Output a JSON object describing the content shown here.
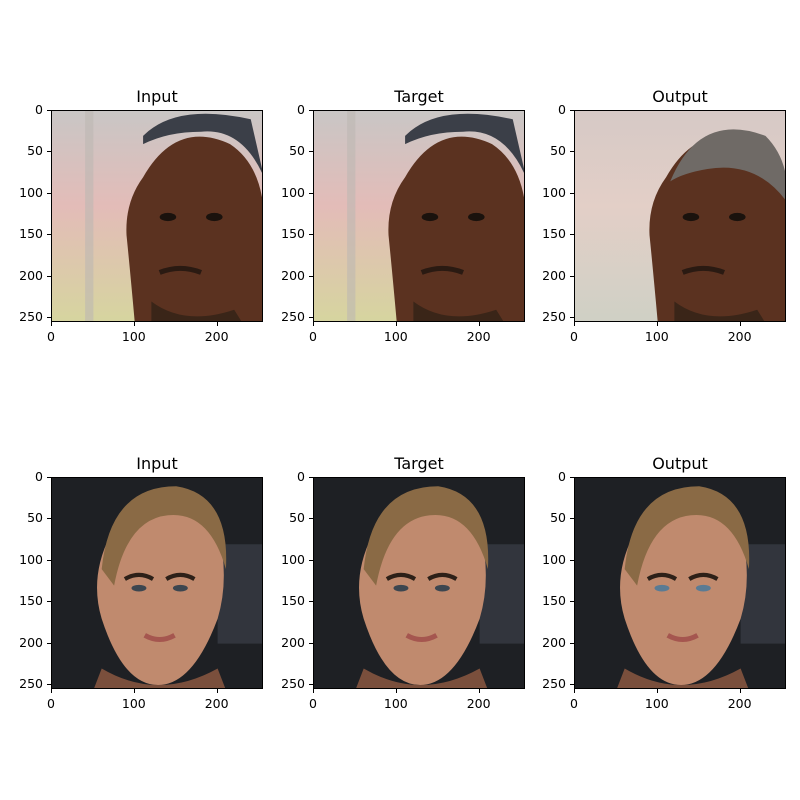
{
  "panels": [
    {
      "title": "Input",
      "subject": "runner-face"
    },
    {
      "title": "Target",
      "subject": "runner-face"
    },
    {
      "title": "Output",
      "subject": "runner-face-generated"
    },
    {
      "title": "Input",
      "subject": "woman-face"
    },
    {
      "title": "Target",
      "subject": "woman-face"
    },
    {
      "title": "Output",
      "subject": "woman-face-generated"
    }
  ],
  "y_ticks": [
    "0",
    "50",
    "100",
    "150",
    "200",
    "250"
  ],
  "x_ticks": [
    "0",
    "100",
    "200"
  ],
  "colors": {
    "runner_bg": "#d8c3b8",
    "runner_skin": "#5b3220",
    "runner_bg_out": "#d7c8c2",
    "woman_bg": "#1e2024",
    "woman_skin": "#c08a6e",
    "woman_hair": "#8a6a45"
  }
}
